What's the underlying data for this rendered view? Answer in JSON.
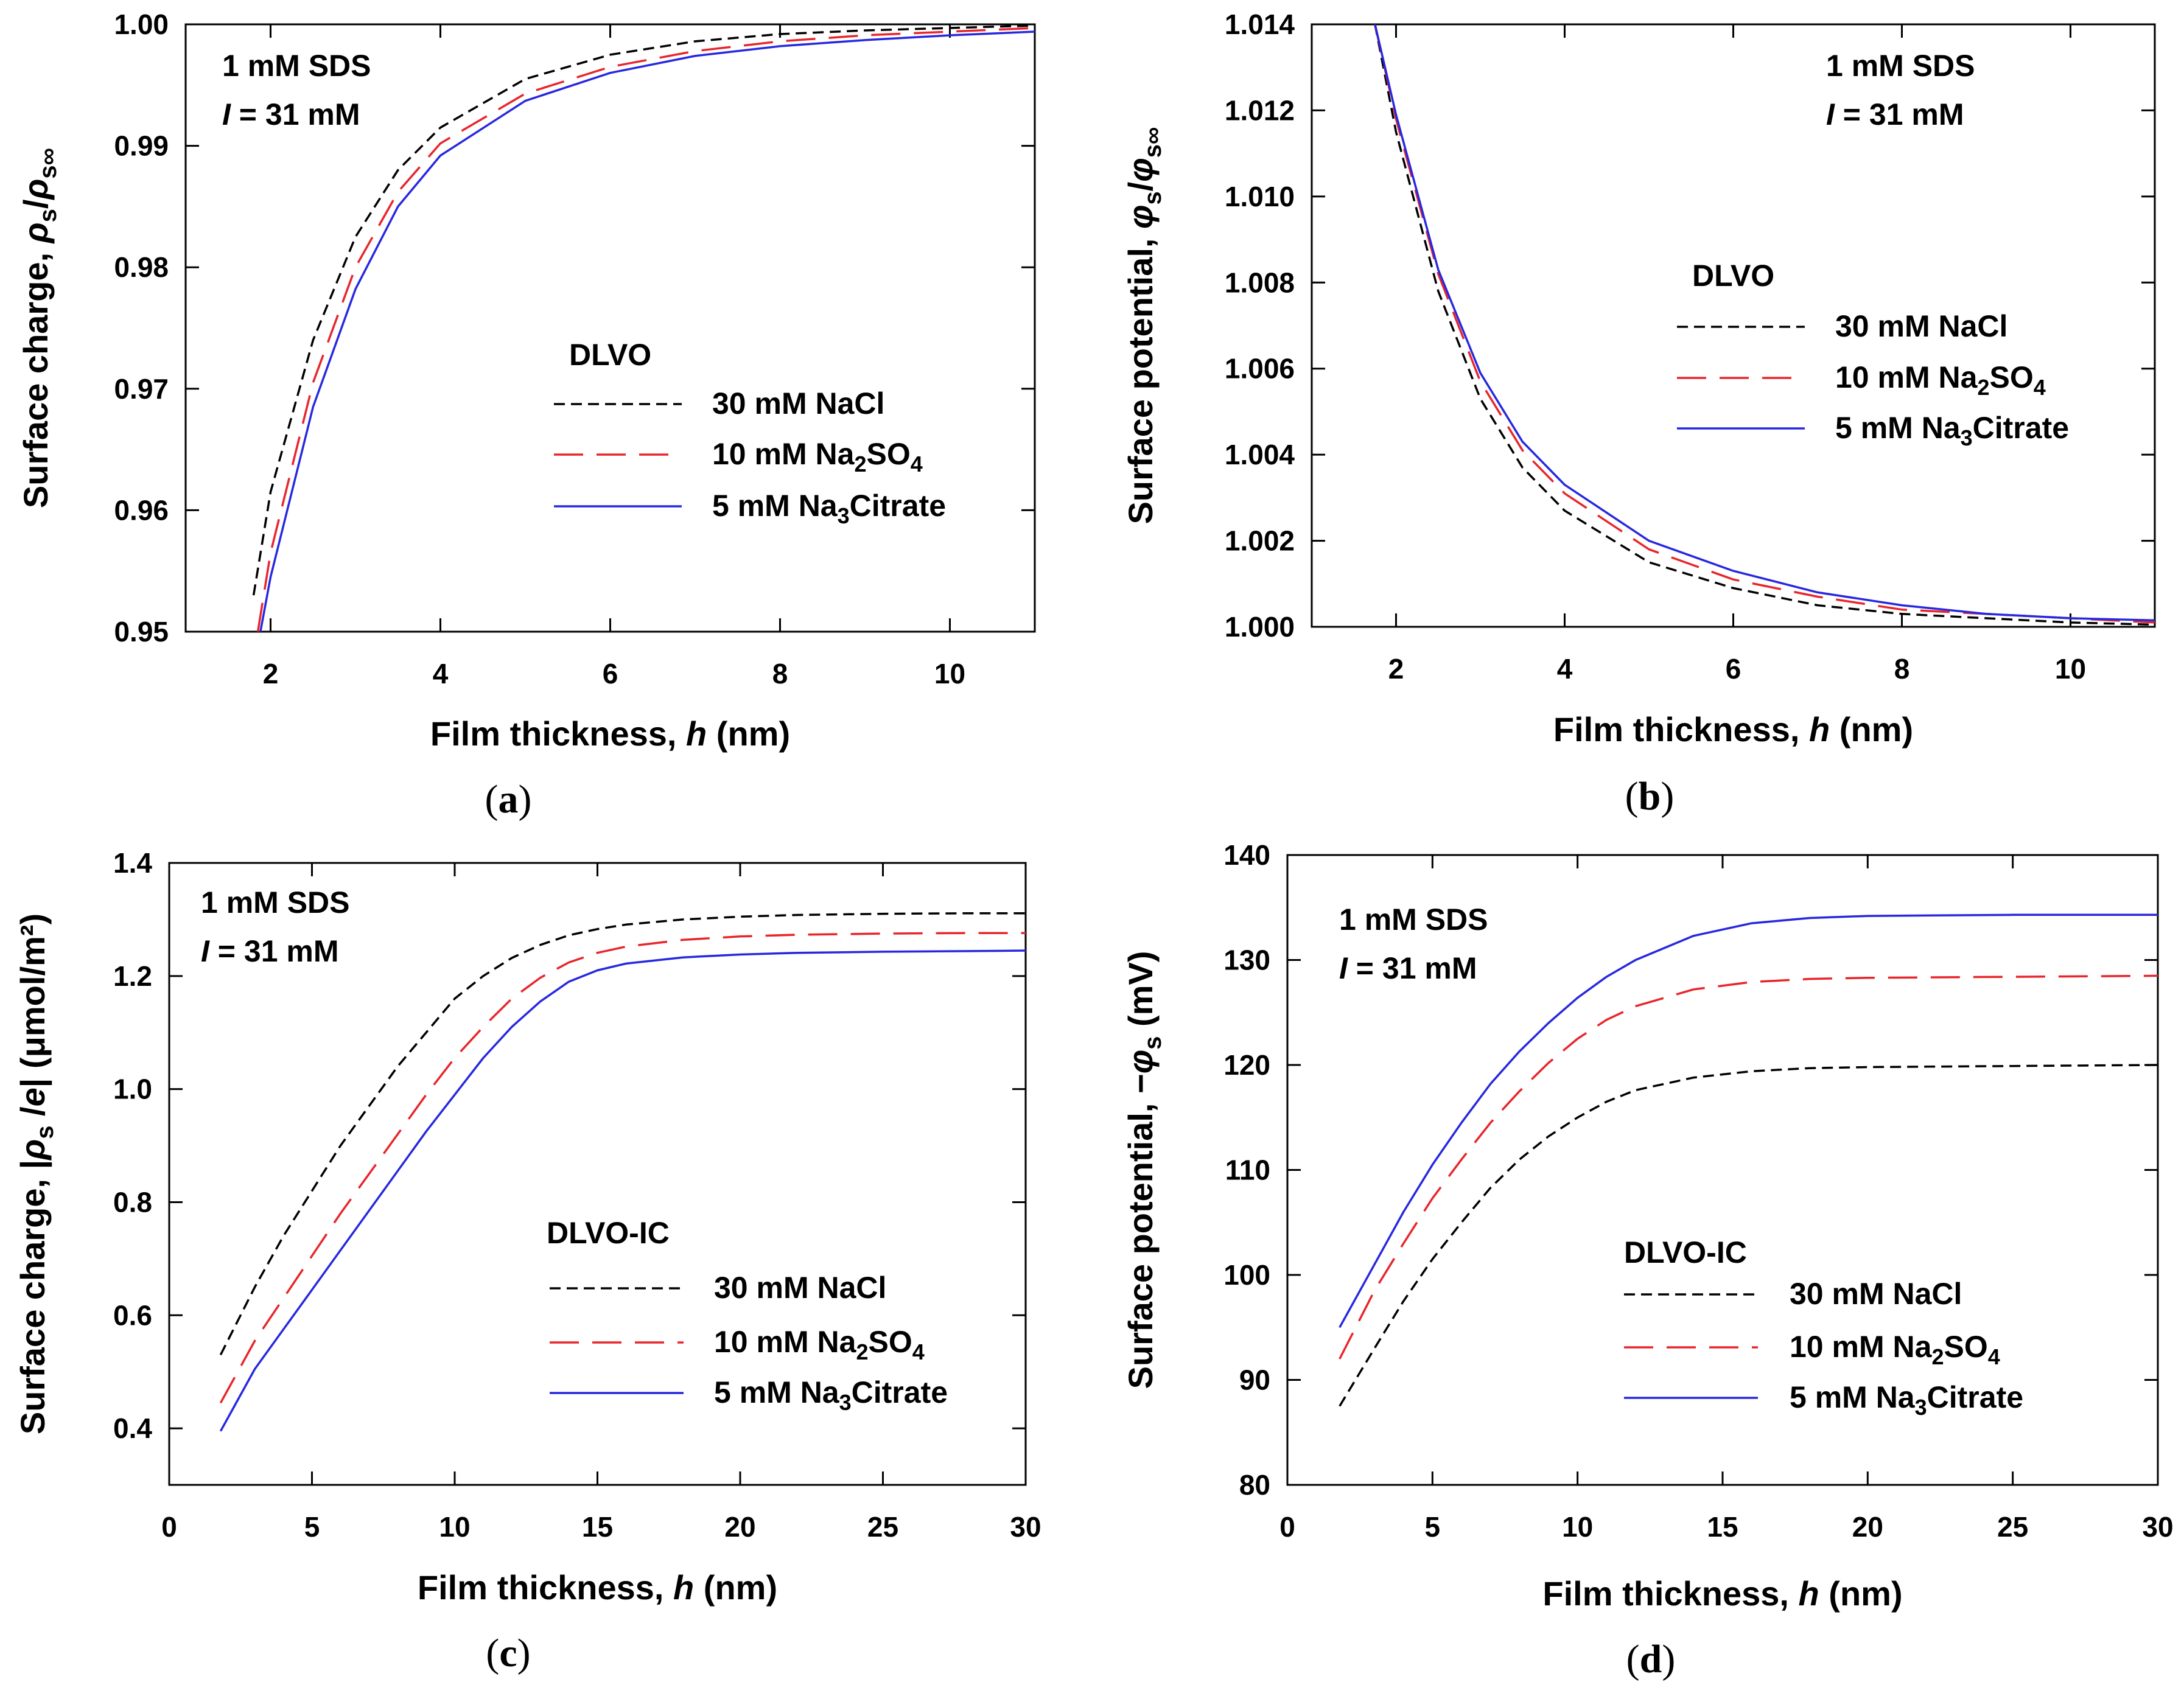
{
  "colors": {
    "nacl": "#000000",
    "na2so4": "#e8252b",
    "citrate": "#2727e0",
    "axis": "#000000"
  },
  "chart_data": [
    {
      "id": "a",
      "type": "line",
      "caption_letter": "a",
      "xlabel_prefix": "Film thickness, ",
      "xlabel_var": "h",
      "xlabel_suffix": " (nm)",
      "ylabel_prefix": "Surface charge, ",
      "ylabel_var": "ρ",
      "ylabel_sub": "s",
      "ylabel_mid": "/",
      "ylabel_var2": "ρ",
      "ylabel_sub2": "s∞",
      "ylabel_tail": "",
      "annotation_line1": "1 mM SDS",
      "annotation_I": "I",
      "annotation_line2_rest": " = 31 mM",
      "model_label": "DLVO",
      "xlim": [
        1,
        11
      ],
      "ylim": [
        0.95,
        1.0
      ],
      "xticks": [
        2,
        4,
        6,
        8,
        10
      ],
      "xtick_labels": [
        "2",
        "4",
        "6",
        "8",
        "10"
      ],
      "yticks": [
        0.95,
        0.96,
        0.97,
        0.98,
        0.99,
        1.0
      ],
      "ytick_labels": [
        "0.95",
        "0.96",
        "0.97",
        "0.98",
        "0.99",
        "1.00"
      ],
      "series": [
        {
          "name": "30 mM NaCl",
          "label_main": "30 mM NaCl",
          "color_key": "nacl",
          "dash": "short",
          "x": [
            1.8,
            2.0,
            2.5,
            3.0,
            3.5,
            4.0,
            5.0,
            6.0,
            7.0,
            8.0,
            9.0,
            10.0,
            11.0
          ],
          "y": [
            0.953,
            0.9615,
            0.974,
            0.9825,
            0.988,
            0.9915,
            0.9955,
            0.9975,
            0.9986,
            0.9992,
            0.9995,
            0.9997,
            0.9999
          ]
        },
        {
          "name": "10 mM Na2SO4",
          "label_main": "10 mM Na",
          "label_sub1": "2",
          "label_mid": "SO",
          "label_sub2": "4",
          "color_key": "na2so4",
          "dash": "long",
          "x": [
            1.85,
            2.0,
            2.5,
            3.0,
            3.5,
            4.0,
            5.0,
            6.0,
            7.0,
            8.0,
            9.0,
            10.0,
            11.0
          ],
          "y": [
            0.95,
            0.9565,
            0.9705,
            0.98,
            0.9862,
            0.9902,
            0.9943,
            0.9965,
            0.9978,
            0.9986,
            0.9991,
            0.9994,
            0.9997
          ]
        },
        {
          "name": "5 mM Na3Citrate",
          "label_main": "5 mM Na",
          "label_sub1": "3",
          "label_mid": "Citrate",
          "label_sub2": "",
          "color_key": "citrate",
          "dash": "solid",
          "x": [
            1.88,
            2.0,
            2.5,
            3.0,
            3.5,
            4.0,
            5.0,
            6.0,
            7.0,
            8.0,
            9.0,
            10.0,
            11.0
          ],
          "y": [
            0.95,
            0.9545,
            0.9685,
            0.9782,
            0.985,
            0.9892,
            0.9937,
            0.996,
            0.9974,
            0.9982,
            0.9987,
            0.9991,
            0.9994
          ]
        }
      ]
    },
    {
      "id": "b",
      "type": "line",
      "caption_letter": "b",
      "xlabel_prefix": "Film thickness, ",
      "xlabel_var": "h",
      "xlabel_suffix": " (nm)",
      "ylabel_prefix": "Surface potential, ",
      "ylabel_var": "φ",
      "ylabel_sub": "s",
      "ylabel_mid": "/",
      "ylabel_var2": "φ",
      "ylabel_sub2": "s∞",
      "ylabel_tail": "",
      "annotation_line1": "1 mM SDS",
      "annotation_I": "I",
      "annotation_line2_rest": " = 31 mM",
      "model_label": "DLVO",
      "xlim": [
        1,
        11
      ],
      "ylim": [
        1.0,
        1.014
      ],
      "xticks": [
        2,
        4,
        6,
        8,
        10
      ],
      "xtick_labels": [
        "2",
        "4",
        "6",
        "8",
        "10"
      ],
      "yticks": [
        1.0,
        1.002,
        1.004,
        1.006,
        1.008,
        1.01,
        1.012,
        1.014
      ],
      "ytick_labels": [
        "1.000",
        "1.002",
        "1.004",
        "1.006",
        "1.008",
        "1.010",
        "1.012",
        "1.014"
      ],
      "series": [
        {
          "name": "30 mM NaCl",
          "label_main": "30 mM NaCl",
          "color_key": "nacl",
          "dash": "short",
          "x": [
            1.75,
            2.0,
            2.5,
            3.0,
            3.5,
            4.0,
            5.0,
            6.0,
            7.0,
            8.0,
            9.0,
            10.0,
            11.0
          ],
          "y": [
            1.014,
            1.0115,
            1.0078,
            1.0053,
            1.0037,
            1.0027,
            1.0015,
            1.0009,
            1.0005,
            1.0003,
            1.0002,
            1.0001,
            1.00005
          ]
        },
        {
          "name": "10 mM Na2SO4",
          "label_main": "10 mM Na",
          "label_sub1": "2",
          "label_mid": "SO",
          "label_sub2": "4",
          "color_key": "na2so4",
          "dash": "long",
          "x": [
            1.75,
            2.0,
            2.5,
            3.0,
            3.5,
            4.0,
            5.0,
            6.0,
            7.0,
            8.0,
            9.0,
            10.0,
            11.0
          ],
          "y": [
            1.014,
            1.0118,
            1.0082,
            1.0057,
            1.0041,
            1.0031,
            1.0018,
            1.0011,
            1.0007,
            1.0004,
            1.0003,
            1.0002,
            1.0001
          ]
        },
        {
          "name": "5 mM Na3Citrate",
          "label_main": "5 mM Na",
          "label_sub1": "3",
          "label_mid": "Citrate",
          "label_sub2": "",
          "color_key": "citrate",
          "dash": "solid",
          "x": [
            1.75,
            2.0,
            2.5,
            3.0,
            3.5,
            4.0,
            5.0,
            6.0,
            7.0,
            8.0,
            9.0,
            10.0,
            11.0
          ],
          "y": [
            1.014,
            1.0119,
            1.0083,
            1.0059,
            1.0043,
            1.0033,
            1.002,
            1.0013,
            1.0008,
            1.0005,
            1.0003,
            1.0002,
            1.00015
          ]
        }
      ]
    },
    {
      "id": "c",
      "type": "line",
      "caption_letter": "c",
      "xlabel_prefix": "Film thickness, ",
      "xlabel_var": "h",
      "xlabel_suffix": " (nm)",
      "ylabel_prefix": "Surface charge, |",
      "ylabel_var": "ρ",
      "ylabel_sub": "s",
      "ylabel_mid": " /",
      "ylabel_var2": "e",
      "ylabel_sub2": "",
      "ylabel_tail": "|  (μmol/m²)",
      "annotation_line1": "1 mM SDS",
      "annotation_I": "I",
      "annotation_line2_rest": " = 31 mM",
      "model_label": "DLVO-IC",
      "xlim": [
        0,
        30
      ],
      "ylim": [
        0.3,
        1.4
      ],
      "xticks": [
        0,
        5,
        10,
        15,
        20,
        25,
        30
      ],
      "xtick_labels": [
        "0",
        "5",
        "10",
        "15",
        "20",
        "25",
        "30"
      ],
      "yticks": [
        0.4,
        0.6,
        0.8,
        1.0,
        1.2,
        1.4
      ],
      "ytick_labels": [
        "0.4",
        "0.6",
        "0.8",
        "1.0",
        "1.2",
        "1.4"
      ],
      "series": [
        {
          "name": "30 mM NaCl",
          "label_main": "30 mM NaCl",
          "color_key": "nacl",
          "dash": "short",
          "x": [
            1.8,
            3,
            4,
            5,
            6,
            7,
            8,
            9,
            10,
            11,
            12,
            13,
            14,
            15,
            16,
            18,
            20,
            22,
            25,
            28,
            30
          ],
          "y": [
            0.53,
            0.65,
            0.74,
            0.82,
            0.9,
            0.97,
            1.04,
            1.1,
            1.16,
            1.2,
            1.232,
            1.255,
            1.272,
            1.283,
            1.291,
            1.3,
            1.305,
            1.308,
            1.31,
            1.311,
            1.311
          ]
        },
        {
          "name": "10 mM Na2SO4",
          "label_main": "10 mM Na",
          "label_sub1": "2",
          "label_mid": "SO",
          "label_sub2": "4",
          "color_key": "na2so4",
          "dash": "long",
          "x": [
            1.8,
            3,
            4,
            5,
            6,
            7,
            8,
            9,
            10,
            11,
            12,
            13,
            14,
            15,
            16,
            18,
            20,
            22,
            25,
            28,
            30
          ],
          "y": [
            0.445,
            0.555,
            0.63,
            0.705,
            0.78,
            0.85,
            0.92,
            0.99,
            1.055,
            1.11,
            1.16,
            1.197,
            1.224,
            1.241,
            1.252,
            1.264,
            1.27,
            1.273,
            1.275,
            1.276,
            1.276
          ]
        },
        {
          "name": "5 mM Na3Citrate",
          "label_main": "5 mM Na",
          "label_sub1": "3",
          "label_mid": "Citrate",
          "label_sub2": "",
          "color_key": "citrate",
          "dash": "solid",
          "x": [
            1.8,
            3,
            4,
            5,
            6,
            7,
            8,
            9,
            10,
            11,
            12,
            13,
            14,
            15,
            16,
            18,
            20,
            22,
            25,
            28,
            30
          ],
          "y": [
            0.395,
            0.505,
            0.575,
            0.645,
            0.715,
            0.785,
            0.855,
            0.925,
            0.99,
            1.055,
            1.11,
            1.155,
            1.19,
            1.21,
            1.222,
            1.233,
            1.238,
            1.241,
            1.243,
            1.244,
            1.245
          ]
        }
      ]
    },
    {
      "id": "d",
      "type": "line",
      "caption_letter": "d",
      "xlabel_prefix": "Film thickness, ",
      "xlabel_var": "h",
      "xlabel_suffix": " (nm)",
      "ylabel_prefix": "Surface potential, −",
      "ylabel_var": "φ",
      "ylabel_sub": "s",
      "ylabel_mid": " (mV)",
      "ylabel_var2": "",
      "ylabel_sub2": "",
      "ylabel_tail": "",
      "annotation_line1": "1 mM SDS",
      "annotation_I": "I",
      "annotation_line2_rest": " = 31 mM",
      "model_label": "DLVO-IC",
      "xlim": [
        0,
        30
      ],
      "ylim": [
        80,
        140
      ],
      "xticks": [
        0,
        5,
        10,
        15,
        20,
        25,
        30
      ],
      "xtick_labels": [
        "0",
        "5",
        "10",
        "15",
        "20",
        "25",
        "30"
      ],
      "yticks": [
        80,
        90,
        100,
        110,
        120,
        130,
        140
      ],
      "ytick_labels": [
        "80",
        "90",
        "100",
        "110",
        "120",
        "130",
        "140"
      ],
      "series": [
        {
          "name": "30 mM NaCl",
          "label_main": "30 mM NaCl",
          "color_key": "nacl",
          "dash": "short",
          "x": [
            1.8,
            3,
            4,
            5,
            6,
            7,
            8,
            9,
            10,
            11,
            12,
            14,
            16,
            18,
            20,
            25,
            30
          ],
          "y": [
            87.5,
            93,
            97.5,
            101.5,
            105,
            108.3,
            111,
            113.2,
            115,
            116.5,
            117.6,
            118.8,
            119.4,
            119.7,
            119.8,
            119.9,
            120
          ]
        },
        {
          "name": "10 mM Na2SO4",
          "label_main": "10 mM Na",
          "label_sub1": "2",
          "label_mid": "SO",
          "label_sub2": "4",
          "color_key": "na2so4",
          "dash": "long",
          "x": [
            1.8,
            3,
            4,
            5,
            6,
            7,
            8,
            9,
            10,
            11,
            12,
            14,
            16,
            18,
            20,
            25,
            30
          ],
          "y": [
            92,
            98.5,
            103,
            107.3,
            111,
            114.5,
            117.5,
            120.2,
            122.5,
            124.3,
            125.6,
            127.2,
            127.9,
            128.2,
            128.3,
            128.4,
            128.5
          ]
        },
        {
          "name": "5 mM Na3Citrate",
          "label_main": "5 mM Na",
          "label_sub1": "3",
          "label_mid": "Citrate",
          "label_sub2": "",
          "color_key": "citrate",
          "dash": "solid",
          "x": [
            1.8,
            3,
            4,
            5,
            6,
            7,
            8,
            9,
            10,
            11,
            12,
            14,
            16,
            18,
            20,
            25,
            30
          ],
          "y": [
            95,
            101,
            106,
            110.5,
            114.5,
            118.2,
            121.3,
            124,
            126.4,
            128.4,
            130,
            132.3,
            133.5,
            134,
            134.2,
            134.3,
            134.3
          ]
        }
      ]
    }
  ]
}
